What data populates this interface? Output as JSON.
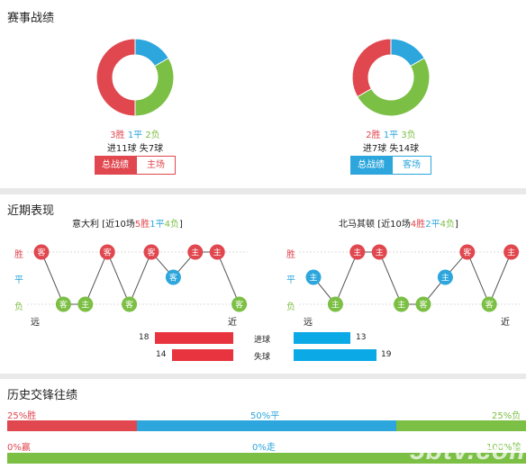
{
  "sections": {
    "record_title": "赛事战绩",
    "recent_title": "近期表现",
    "history_title": "历史交锋往绩"
  },
  "colors": {
    "win": "#e0474f",
    "draw": "#2ca6dc",
    "loss": "#7bbf44",
    "neutral": "#cccccc"
  },
  "home": {
    "wins_label": "3胜",
    "draws_label": "1平",
    "losses_label": "2负",
    "goals_label": "进11球 失7球",
    "wins": 3,
    "draws": 1,
    "losses": 2,
    "tab_active": "总战绩",
    "tab_other": "主场"
  },
  "away": {
    "wins_label": "2胜",
    "draws_label": "1平",
    "losses_label": "3负",
    "goals_label": "进7球 失14球",
    "wins": 2,
    "draws": 1,
    "losses": 3,
    "tab_active": "总战绩",
    "tab_other": "客场"
  },
  "recent": {
    "home_team": "意大利",
    "home_summary_prefix": "[近10场",
    "home_w": "5胜",
    "home_d": "1平",
    "home_l": "4负",
    "home_suffix": "]",
    "away_team": "北马其顿",
    "away_summary_prefix": "[近10场",
    "away_w": "4胜",
    "away_d": "2平",
    "away_l": "4负",
    "away_suffix": "]",
    "row_win": "胜",
    "row_draw": "平",
    "row_loss": "负",
    "far": "远",
    "near": "近",
    "home_form": [
      {
        "r": "W",
        "v": "客"
      },
      {
        "r": "L",
        "v": "客"
      },
      {
        "r": "L",
        "v": "主"
      },
      {
        "r": "W",
        "v": "客"
      },
      {
        "r": "L",
        "v": "客"
      },
      {
        "r": "W",
        "v": "客"
      },
      {
        "r": "D",
        "v": "客"
      },
      {
        "r": "W",
        "v": "主"
      },
      {
        "r": "W",
        "v": "主"
      },
      {
        "r": "L",
        "v": "客"
      }
    ],
    "away_form": [
      {
        "r": "D",
        "v": "主"
      },
      {
        "r": "L",
        "v": "主"
      },
      {
        "r": "W",
        "v": "主"
      },
      {
        "r": "W",
        "v": "主"
      },
      {
        "r": "L",
        "v": "主"
      },
      {
        "r": "L",
        "v": "客"
      },
      {
        "r": "D",
        "v": "主"
      },
      {
        "r": "W",
        "v": "客"
      },
      {
        "r": "L",
        "v": "客"
      },
      {
        "r": "W",
        "v": "主"
      }
    ]
  },
  "goals": {
    "scored_label": "进球",
    "conceded_label": "失球",
    "home_scored": 18,
    "away_scored": 13,
    "home_conceded": 14,
    "away_conceded": 19
  },
  "history": {
    "win_pct": "25%胜",
    "draw_pct": "50%平",
    "loss_pct": "25%负",
    "win": 0.25,
    "draw": 0.5,
    "loss": 0.25,
    "big_pct": "0%赢",
    "even_pct": "0%走",
    "lose_pct": "100%输",
    "big": 0,
    "even": 0,
    "lose": 1
  },
  "watermark": "5btv.com"
}
